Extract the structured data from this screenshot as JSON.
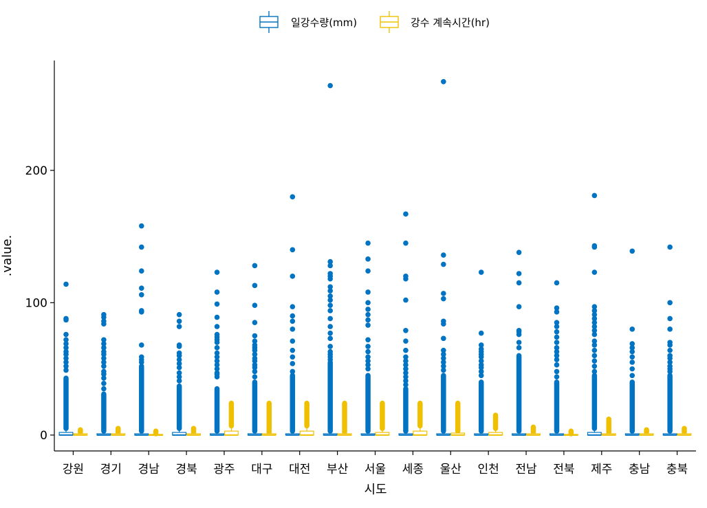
{
  "chart_data": {
    "type": "boxplot",
    "xlabel": "시도",
    "ylabel": ".value.",
    "ylim": [
      -12,
      283
    ],
    "yticks": [
      0,
      100,
      200
    ],
    "legend_position": "top",
    "grid": false,
    "categories": [
      "강원",
      "경기",
      "경남",
      "경북",
      "광주",
      "대구",
      "대전",
      "부산",
      "서울",
      "세종",
      "울산",
      "인천",
      "전남",
      "전북",
      "제주",
      "충남",
      "충북"
    ],
    "series": [
      {
        "name": "일강수량(mm)",
        "color": "#0073C2",
        "boxes": [
          {
            "q1": 0,
            "median": 0,
            "q3": 2,
            "whisker_low": 0,
            "whisker_high": 5,
            "outlier_dense_to": 43,
            "outliers": [
              49,
              52,
              55,
              58,
              61,
              63,
              66,
              69,
              72,
              76,
              87,
              88,
              114
            ]
          },
          {
            "q1": 0,
            "median": 0,
            "q3": 1,
            "whisker_low": 0,
            "whisker_high": 3,
            "outlier_dense_to": 31,
            "outliers": [
              35,
              39,
              43,
              46,
              48,
              52,
              55,
              58,
              61,
              63,
              66,
              69,
              72,
              84,
              86,
              89,
              91
            ]
          },
          {
            "q1": 0,
            "median": 0,
            "q3": 1,
            "whisker_low": 0,
            "whisker_high": 3,
            "outlier_dense_to": 52,
            "outliers": [
              55,
              57,
              59,
              68,
              93,
              94,
              106,
              111,
              124,
              142,
              158
            ]
          },
          {
            "q1": 0,
            "median": 0,
            "q3": 2,
            "whisker_low": 0,
            "whisker_high": 5,
            "outlier_dense_to": 37,
            "outliers": [
              41,
              44,
              47,
              51,
              54,
              57,
              60,
              62,
              67,
              68,
              82,
              86,
              91
            ]
          },
          {
            "q1": 0,
            "median": 0,
            "q3": 1,
            "whisker_low": 0,
            "whisker_high": 3,
            "outlier_dense_to": 35,
            "outliers": [
              44,
              46,
              47,
              50,
              53,
              56,
              59,
              62,
              66,
              70,
              72,
              74,
              76,
              82,
              89,
              99,
              108,
              123
            ]
          },
          {
            "q1": 0,
            "median": 0,
            "q3": 1,
            "whisker_low": 0,
            "whisker_high": 3,
            "outlier_dense_to": 40,
            "outliers": [
              44,
              48,
              51,
              53,
              56,
              58,
              61,
              64,
              66,
              68,
              71,
              75,
              85,
              98,
              113,
              128
            ]
          },
          {
            "q1": 0,
            "median": 0,
            "q3": 1,
            "whisker_low": 0,
            "whisker_high": 3,
            "outlier_dense_to": 45,
            "outliers": [
              48,
              54,
              59,
              64,
              71,
              80,
              86,
              90,
              97,
              120,
              140,
              180
            ]
          },
          {
            "q1": 0,
            "median": 0,
            "q3": 1,
            "whisker_low": 0,
            "whisker_high": 3,
            "outlier_dense_to": 55,
            "outliers": [
              57,
              59,
              61,
              63,
              67,
              73,
              77,
              82,
              88,
              94,
              98,
              102,
              105,
              109,
              112,
              118,
              120,
              122,
              128,
              131,
              264
            ]
          },
          {
            "q1": 0,
            "median": 0,
            "q3": 1,
            "whisker_low": 0,
            "whisker_high": 3,
            "outlier_dense_to": 45,
            "outliers": [
              50,
              53,
              56,
              59,
              63,
              67,
              72,
              83,
              87,
              91,
              95,
              100,
              108,
              124,
              133,
              145
            ]
          },
          {
            "q1": 0,
            "median": 0,
            "q3": 1,
            "whisker_low": 0,
            "whisker_high": 3,
            "outlier_dense_to": 35,
            "outliers": [
              38,
              41,
              44,
              47,
              50,
              53,
              56,
              59,
              64,
              71,
              79,
              102,
              118,
              120,
              145,
              167
            ]
          },
          {
            "q1": 0,
            "median": 0,
            "q3": 1,
            "whisker_low": 0,
            "whisker_high": 3,
            "outlier_dense_to": 45,
            "outliers": [
              49,
              52,
              55,
              58,
              61,
              64,
              73,
              84,
              86,
              103,
              107,
              129,
              136,
              267
            ]
          },
          {
            "q1": 0,
            "median": 0,
            "q3": 1,
            "whisker_low": 0,
            "whisker_high": 3,
            "outlier_dense_to": 40,
            "outliers": [
              45,
              48,
              51,
              53,
              56,
              59,
              61,
              63,
              65,
              68,
              77,
              123
            ]
          },
          {
            "q1": 0,
            "median": 0,
            "q3": 1,
            "whisker_low": 0,
            "whisker_high": 3,
            "outlier_dense_to": 60,
            "outliers": [
              66,
              70,
              76,
              78,
              79,
              97,
              115,
              122,
              138
            ]
          },
          {
            "q1": 0,
            "median": 0,
            "q3": 1,
            "whisker_low": 0,
            "whisker_high": 3,
            "outlier_dense_to": 40,
            "outliers": [
              44,
              48,
              53,
              57,
              60,
              63,
              66,
              70,
              74,
              78,
              82,
              85,
              93,
              96,
              115
            ]
          },
          {
            "q1": 0,
            "median": 0,
            "q3": 2,
            "whisker_low": 0,
            "whisker_high": 5,
            "outlier_dense_to": 45,
            "outliers": [
              48,
              52,
              56,
              60,
              64,
              68,
              71,
              76,
              79,
              82,
              85,
              88,
              91,
              94,
              97,
              123,
              142,
              143,
              181
            ]
          },
          {
            "q1": 0,
            "median": 0,
            "q3": 1,
            "whisker_low": 0,
            "whisker_high": 3,
            "outlier_dense_to": 40,
            "outliers": [
              45,
              50,
              55,
              59,
              63,
              66,
              69,
              80,
              139
            ]
          },
          {
            "q1": 0,
            "median": 0,
            "q3": 1,
            "whisker_low": 0,
            "whisker_high": 3,
            "outlier_dense_to": 45,
            "outliers": [
              48,
              50,
              52,
              55,
              58,
              60,
              64,
              68,
              70,
              80,
              88,
              100,
              142
            ]
          }
        ]
      },
      {
        "name": "강수 계속시간(hr)",
        "color": "#EFC000",
        "boxes": [
          {
            "q1": 0,
            "median": 0,
            "q3": 1,
            "whisker_low": 0,
            "whisker_high": 2,
            "outlier_dense_to": 4,
            "outliers": []
          },
          {
            "q1": 0,
            "median": 0,
            "q3": 1,
            "whisker_low": 0,
            "whisker_high": 2,
            "outlier_dense_to": 5,
            "outliers": []
          },
          {
            "q1": 0,
            "median": 0,
            "q3": 0.5,
            "whisker_low": 0,
            "whisker_high": 1,
            "outlier_dense_to": 3,
            "outliers": []
          },
          {
            "q1": 0,
            "median": 0,
            "q3": 1,
            "whisker_low": 0,
            "whisker_high": 2,
            "outlier_dense_to": 5,
            "outliers": []
          },
          {
            "q1": 0,
            "median": 0,
            "q3": 3,
            "whisker_low": 0,
            "whisker_high": 7,
            "outlier_dense_to": 24,
            "outliers": []
          },
          {
            "q1": 0,
            "median": 0,
            "q3": 1,
            "whisker_low": 0,
            "whisker_high": 2,
            "outlier_dense_to": 24,
            "outliers": []
          },
          {
            "q1": 0,
            "median": 0,
            "q3": 3,
            "whisker_low": 0,
            "whisker_high": 7,
            "outlier_dense_to": 24,
            "outliers": []
          },
          {
            "q1": 0,
            "median": 0,
            "q3": 1,
            "whisker_low": 0,
            "whisker_high": 2,
            "outlier_dense_to": 24,
            "outliers": []
          },
          {
            "q1": 0,
            "median": 0,
            "q3": 2,
            "whisker_low": 0,
            "whisker_high": 5,
            "outlier_dense_to": 24,
            "outliers": []
          },
          {
            "q1": 0,
            "median": 0,
            "q3": 3,
            "whisker_low": 0,
            "whisker_high": 7,
            "outlier_dense_to": 24,
            "outliers": []
          },
          {
            "q1": 0,
            "median": 0,
            "q3": 1.5,
            "whisker_low": 0,
            "whisker_high": 3,
            "outlier_dense_to": 24,
            "outliers": []
          },
          {
            "q1": 0,
            "median": 0,
            "q3": 2,
            "whisker_low": 0,
            "whisker_high": 5,
            "outlier_dense_to": 15,
            "outliers": []
          },
          {
            "q1": 0,
            "median": 0,
            "q3": 1,
            "whisker_low": 0,
            "whisker_high": 2,
            "outlier_dense_to": 6,
            "outliers": []
          },
          {
            "q1": 0,
            "median": 0,
            "q3": 0.5,
            "whisker_low": 0,
            "whisker_high": 1,
            "outlier_dense_to": 3,
            "outliers": []
          },
          {
            "q1": 0,
            "median": 0,
            "q3": 1,
            "whisker_low": 0,
            "whisker_high": 2,
            "outlier_dense_to": 12,
            "outliers": []
          },
          {
            "q1": 0,
            "median": 0,
            "q3": 1,
            "whisker_low": 0,
            "whisker_high": 2,
            "outlier_dense_to": 4,
            "outliers": []
          },
          {
            "q1": 0,
            "median": 0,
            "q3": 1,
            "whisker_low": 0,
            "whisker_high": 2,
            "outlier_dense_to": 5,
            "outliers": []
          }
        ]
      }
    ]
  }
}
